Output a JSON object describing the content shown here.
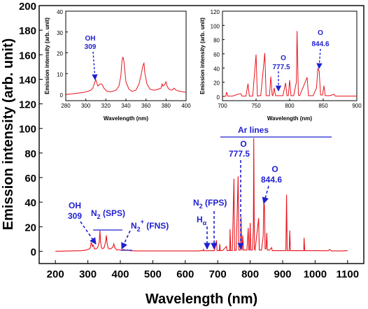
{
  "chart_data": [
    {
      "id": "main",
      "type": "line",
      "xlabel": "Wavelength (nm)",
      "ylabel": "Emission intensity (arb. unit)",
      "xlim": [
        150,
        1150
      ],
      "ylim": [
        -10,
        200
      ],
      "xticks": [
        200,
        300,
        400,
        500,
        600,
        700,
        800,
        900,
        1000,
        1100
      ],
      "yticks": [
        0,
        20,
        40,
        60,
        80,
        100,
        120,
        140,
        160,
        180,
        200
      ],
      "grid": false,
      "line_color": "#e8141c",
      "series": [
        {
          "points": [
            [
              200,
              0
            ],
            [
              280,
              0.5
            ],
            [
              295,
              1
            ],
            [
              300,
              1.5
            ],
            [
              305,
              2
            ],
            [
              308,
              3
            ],
            [
              310,
              7
            ],
            [
              312,
              6
            ],
            [
              314,
              4
            ],
            [
              316,
              5
            ],
            [
              318,
              4
            ],
            [
              320,
              2
            ],
            [
              325,
              2
            ],
            [
              330,
              3
            ],
            [
              335,
              7
            ],
            [
              337,
              17
            ],
            [
              339,
              8
            ],
            [
              342,
              3
            ],
            [
              345,
              2
            ],
            [
              350,
              3
            ],
            [
              355,
              8
            ],
            [
              357,
              13
            ],
            [
              359,
              7
            ],
            [
              362,
              3
            ],
            [
              365,
              2
            ],
            [
              370,
              2
            ],
            [
              375,
              3
            ],
            [
              378,
              4
            ],
            [
              380,
              6
            ],
            [
              383,
              3
            ],
            [
              386,
              2
            ],
            [
              390,
              1
            ],
            [
              395,
              1.5
            ],
            [
              400,
              1
            ],
            [
              405,
              1
            ],
            [
              410,
              1.5
            ],
            [
              415,
              1
            ],
            [
              420,
              1
            ],
            [
              425,
              1
            ],
            [
              430,
              0.5
            ],
            [
              450,
              0.3
            ],
            [
              500,
              0.3
            ],
            [
              550,
              0.3
            ],
            [
              600,
              0.3
            ],
            [
              640,
              0.3
            ],
            [
              650,
              0.5
            ],
            [
              655,
              0.5
            ],
            [
              656,
              1.5
            ],
            [
              658,
              0.5
            ],
            [
              665,
              0.4
            ],
            [
              680,
              0.5
            ],
            [
              690,
              0.5
            ],
            [
              696,
              9
            ],
            [
              698,
              0.6
            ],
            [
              700,
              0.5
            ],
            [
              705,
              0.5
            ],
            [
              706,
              6
            ],
            [
              708,
              0.5
            ],
            [
              715,
              0.6
            ],
            [
              727,
              4
            ],
            [
              729,
              0.5
            ],
            [
              735,
              0.6
            ],
            [
              737,
              0.6
            ],
            [
              738,
              18
            ],
            [
              740,
              0.6
            ],
            [
              745,
              0.6
            ],
            [
              750,
              59
            ],
            [
              752,
              0.6
            ],
            [
              755,
              1
            ],
            [
              757,
              0.8
            ],
            [
              763,
              61
            ],
            [
              765,
              1
            ],
            [
              770,
              1
            ],
            [
              772,
              28
            ],
            [
              774,
              2
            ],
            [
              775,
              1
            ],
            [
              777,
              13
            ],
            [
              779,
              1
            ],
            [
              790,
              1
            ],
            [
              794,
              19
            ],
            [
              796,
              1
            ],
            [
              798,
              1
            ],
            [
              800,
              23
            ],
            [
              802,
              1
            ],
            [
              807,
              1
            ],
            [
              810,
              20
            ],
            [
              811,
              92
            ],
            [
              813,
              2
            ],
            [
              815,
              1
            ],
            [
              826,
              27
            ],
            [
              828,
              1
            ],
            [
              835,
              1
            ],
            [
              840,
              12
            ],
            [
              842,
              40
            ],
            [
              844,
              37
            ],
            [
              846,
              2
            ],
            [
              849,
              2
            ],
            [
              851,
              15
            ],
            [
              853,
              1
            ],
            [
              860,
              1
            ],
            [
              866,
              3
            ],
            [
              868,
              0.5
            ],
            [
              880,
              0.5
            ],
            [
              910,
              0.5
            ],
            [
              912,
              46
            ],
            [
              914,
              0.5
            ],
            [
              920,
              0.5
            ],
            [
              922,
              17
            ],
            [
              924,
              0.5
            ],
            [
              935,
              0.5
            ],
            [
              965,
              0.5
            ],
            [
              966,
              11
            ],
            [
              968,
              0.5
            ],
            [
              1000,
              0.5
            ],
            [
              1040,
              0.4
            ],
            [
              1045,
              1.5
            ],
            [
              1050,
              0.3
            ],
            [
              1080,
              0.3
            ],
            [
              1100,
              0.5
            ]
          ]
        }
      ],
      "annotations": {
        "oh": {
          "l1": "OH",
          "l2": "309"
        },
        "n2sps": {
          "base": "N",
          "sub": "2",
          "tail": " (SPS)"
        },
        "n2fns": {
          "base": "N",
          "sub": "2",
          "sup": "+",
          "tail": " (FNS)"
        },
        "n2fps": {
          "base": "N",
          "sub": "2",
          "tail": " (FPS)"
        },
        "halpha": {
          "base": "H",
          "sub": "α"
        },
        "ar": {
          "label": "Ar lines"
        },
        "o777": {
          "l1": "O",
          "l2": "777.5"
        },
        "o844": {
          "l1": "O",
          "l2": "844.6"
        }
      }
    },
    {
      "id": "inset-left",
      "type": "line",
      "xlabel": "Wavelength (nm)",
      "ylabel": "Emission intensity (arb. unit)",
      "xlim": [
        280,
        400
      ],
      "ylim": [
        -3,
        40
      ],
      "xticks": [
        280,
        300,
        320,
        340,
        360,
        380,
        400
      ],
      "yticks": [
        0,
        10,
        20,
        30,
        40
      ],
      "grid": false,
      "line_color": "#e8141c",
      "series": [
        {
          "points": [
            [
              280,
              0
            ],
            [
              290,
              0.5
            ],
            [
              298,
              1
            ],
            [
              302,
              1.5
            ],
            [
              305,
              2
            ],
            [
              307,
              3
            ],
            [
              309,
              6
            ],
            [
              310,
              7
            ],
            [
              312,
              4
            ],
            [
              314,
              5
            ],
            [
              316,
              5
            ],
            [
              318,
              3
            ],
            [
              321,
              1.5
            ],
            [
              325,
              1.3
            ],
            [
              330,
              2
            ],
            [
              333,
              4
            ],
            [
              335,
              9
            ],
            [
              336,
              16
            ],
            [
              337,
              18
            ],
            [
              338,
              16
            ],
            [
              340,
              6
            ],
            [
              343,
              2.5
            ],
            [
              346,
              1.5
            ],
            [
              350,
              2
            ],
            [
              353,
              5
            ],
            [
              355,
              9
            ],
            [
              357,
              14
            ],
            [
              358,
              15
            ],
            [
              359,
              10
            ],
            [
              361,
              5
            ],
            [
              364,
              2.5
            ],
            [
              368,
              2
            ],
            [
              372,
              2.5
            ],
            [
              375,
              3
            ],
            [
              376,
              5
            ],
            [
              377,
              4
            ],
            [
              379,
              5
            ],
            [
              380,
              6
            ],
            [
              381,
              4
            ],
            [
              383,
              2.5
            ],
            [
              386,
              2
            ],
            [
              388,
              3
            ],
            [
              390,
              2
            ],
            [
              394,
              1.5
            ],
            [
              400,
              1
            ]
          ]
        }
      ],
      "annotations": {
        "oh": {
          "l1": "OH",
          "l2": "309"
        }
      }
    },
    {
      "id": "inset-right",
      "type": "line",
      "xlabel": "Wavelength (nm)",
      "ylabel": "Emission intensity (arb. unit)",
      "xlim": [
        700,
        900
      ],
      "ylim": [
        -6,
        120
      ],
      "xticks": [
        700,
        750,
        800,
        850,
        900
      ],
      "yticks": [
        0,
        20,
        40,
        60,
        80,
        100,
        120
      ],
      "grid": false,
      "line_color": "#e8141c",
      "series": [
        {
          "points": [
            [
              700,
              0
            ],
            [
              705,
              0.5
            ],
            [
              706,
              6
            ],
            [
              708,
              0.5
            ],
            [
              715,
              0.5
            ],
            [
              727,
              4
            ],
            [
              729,
              0.5
            ],
            [
              735,
              0.5
            ],
            [
              738,
              18
            ],
            [
              740,
              0.5
            ],
            [
              745,
              0.5
            ],
            [
              750,
              59
            ],
            [
              752,
              0.5
            ],
            [
              755,
              1
            ],
            [
              757,
              1
            ],
            [
              763,
              61
            ],
            [
              765,
              1
            ],
            [
              770,
              1
            ],
            [
              772,
              28
            ],
            [
              774,
              2
            ],
            [
              775,
              1
            ],
            [
              777,
              12
            ],
            [
              779,
              1
            ],
            [
              790,
              1
            ],
            [
              794,
              19
            ],
            [
              796,
              1
            ],
            [
              798,
              1
            ],
            [
              800,
              23
            ],
            [
              802,
              1
            ],
            [
              806,
              1
            ],
            [
              810,
              20
            ],
            [
              811,
              92
            ],
            [
              813,
              2
            ],
            [
              815,
              1
            ],
            [
              826,
              27
            ],
            [
              828,
              1
            ],
            [
              835,
              1
            ],
            [
              840,
              12
            ],
            [
              842,
              39
            ],
            [
              844,
              36
            ],
            [
              846,
              2
            ],
            [
              849,
              2
            ],
            [
              851,
              15
            ],
            [
              853,
              1
            ],
            [
              860,
              1
            ],
            [
              866,
              3
            ],
            [
              868,
              0.5
            ],
            [
              880,
              0.5
            ],
            [
              900,
              0.5
            ]
          ]
        }
      ],
      "annotations": {
        "o777": {
          "l1": "O",
          "l2": "777.5"
        },
        "o844": {
          "l1": "O",
          "l2": "844.6"
        }
      }
    }
  ]
}
